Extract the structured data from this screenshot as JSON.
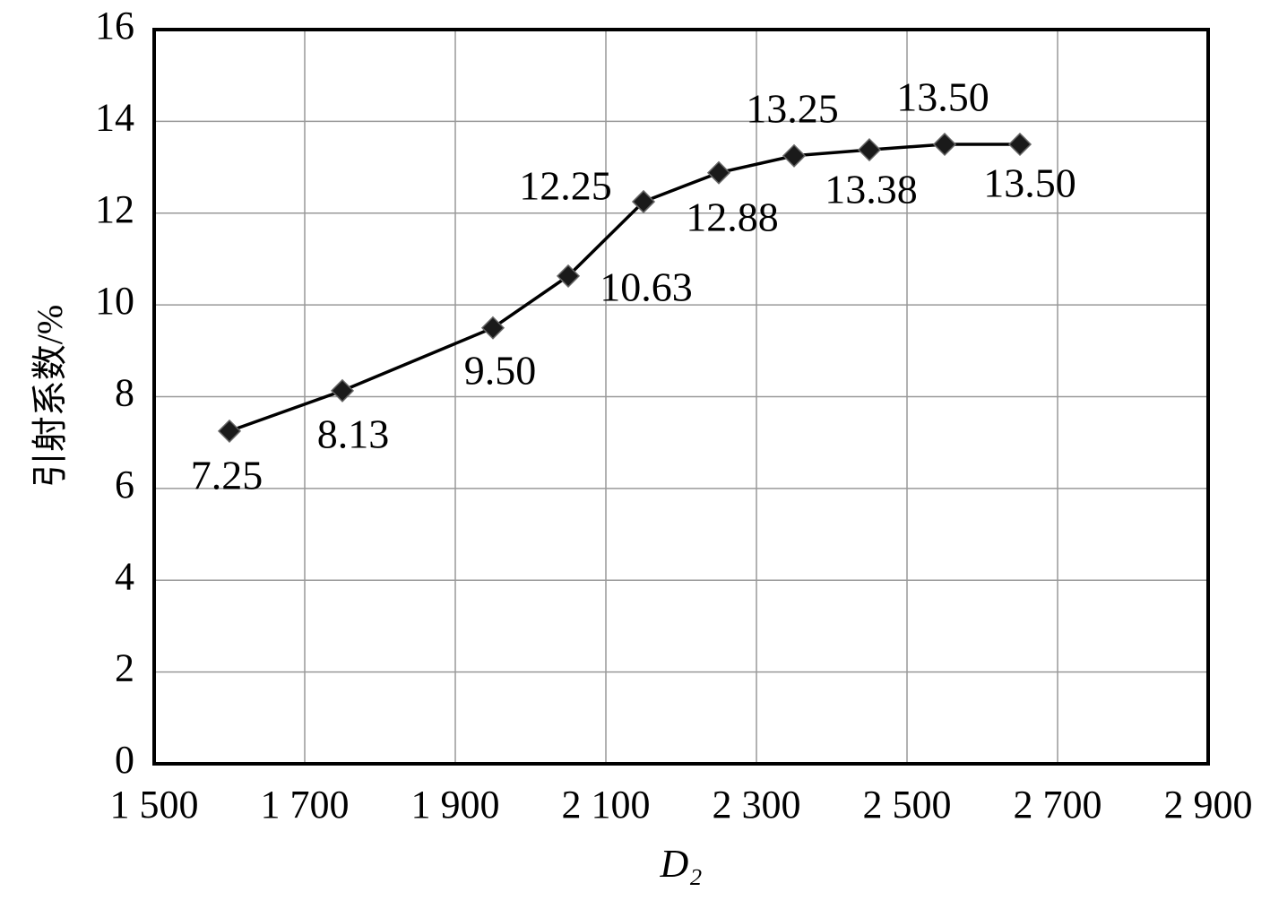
{
  "chart_data": {
    "type": "line",
    "xlabel": "D₂",
    "ylabel": "引射系数/%",
    "x": [
      1600,
      1750,
      1950,
      2050,
      2150,
      2250,
      2350,
      2450,
      2550,
      2650
    ],
    "series": [
      {
        "color": "#000000",
        "values": [
          7.25,
          8.13,
          9.5,
          10.63,
          12.25,
          12.88,
          13.25,
          13.38,
          13.5,
          13.5
        ],
        "value_labels": [
          "7.25",
          "8.13",
          "9.50",
          "10.63",
          "12.25",
          "12.88",
          "13.25",
          "13.38",
          "13.50",
          "13.50"
        ]
      }
    ],
    "xlim": [
      1500,
      2900
    ],
    "xticks": [
      {
        "value": 1500,
        "label": "1 500"
      },
      {
        "value": 1700,
        "label": "1 700"
      },
      {
        "value": 1900,
        "label": "1 900"
      },
      {
        "value": 2100,
        "label": "2 100"
      },
      {
        "value": 2300,
        "label": "2 300"
      },
      {
        "value": 2500,
        "label": "2 500"
      },
      {
        "value": 2700,
        "label": "2 700"
      },
      {
        "value": 2900,
        "label": "2 900"
      }
    ],
    "ylim": [
      0,
      16
    ],
    "yticks": [
      0,
      2,
      4,
      6,
      8,
      10,
      12,
      14,
      16
    ],
    "grid": true
  }
}
